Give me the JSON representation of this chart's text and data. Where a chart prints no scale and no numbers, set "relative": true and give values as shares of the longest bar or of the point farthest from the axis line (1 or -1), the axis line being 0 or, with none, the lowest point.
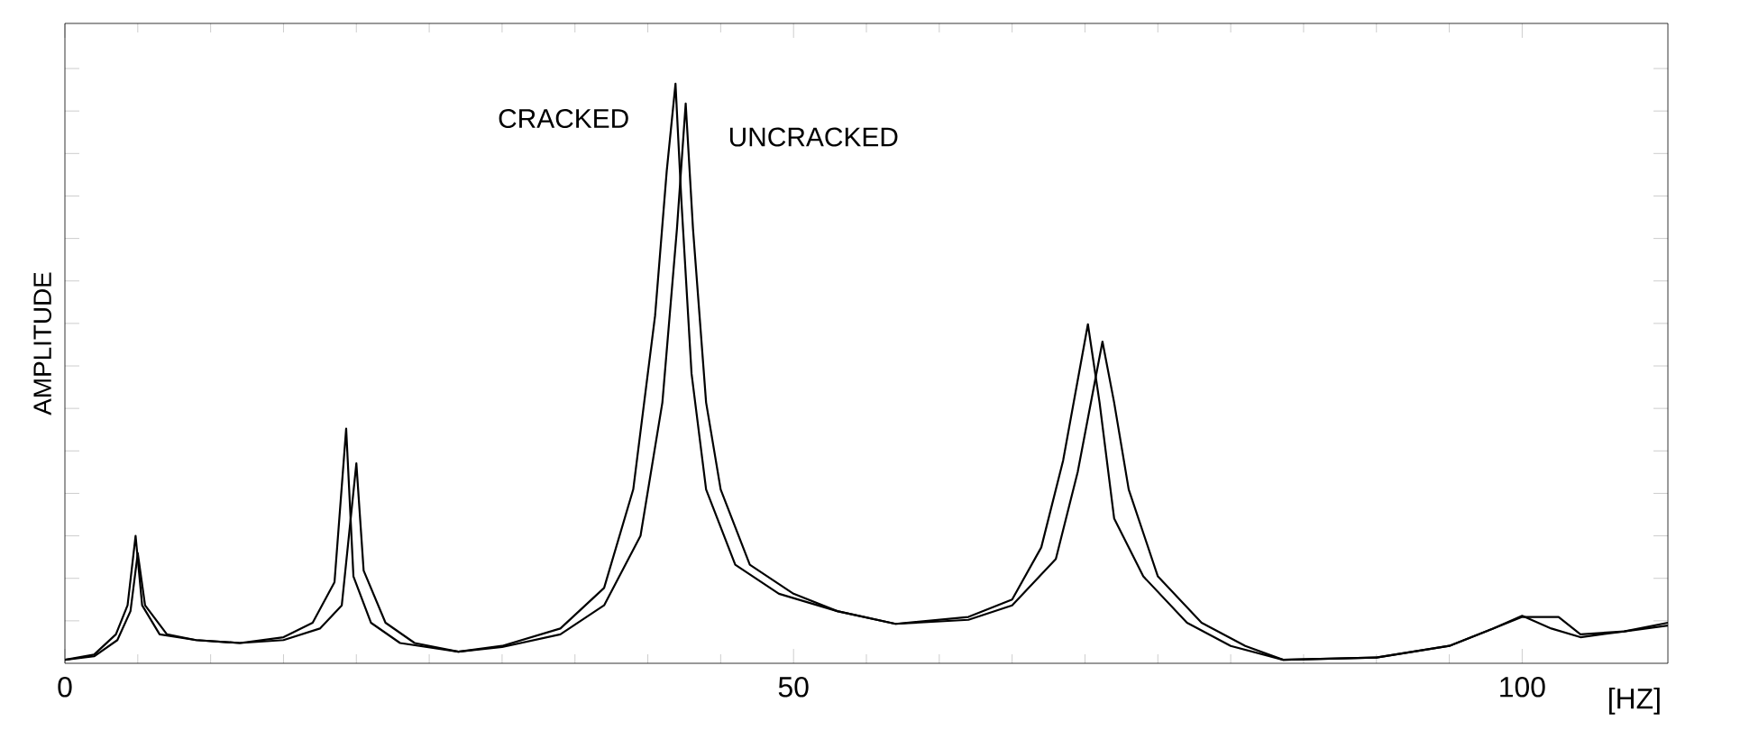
{
  "chart_data": {
    "type": "line",
    "xlabel": "[HZ]",
    "ylabel": "AMPLITUDE",
    "relative": true,
    "legend": false,
    "marker": "none",
    "line_style": "solid",
    "xlim": [
      0,
      110
    ],
    "xticks": [
      0,
      50,
      100
    ],
    "series": [
      {
        "name": "CRACKED",
        "color": "#000000",
        "x": [
          0,
          2,
          3.5,
          4.3,
          4.85,
          5.3,
          6.5,
          9,
          12,
          15,
          17,
          18.5,
          19.3,
          19.8,
          21,
          23,
          27,
          30,
          34,
          37,
          39,
          40.5,
          41.3,
          41.9,
          42.3,
          43,
          44,
          46,
          49,
          53,
          57,
          62,
          65,
          67,
          68.5,
          70.2,
          71,
          72,
          74,
          77,
          80,
          83.6,
          90,
          95,
          98,
          100,
          102,
          104,
          107,
          110
        ],
        "values": [
          0.006,
          0.015,
          0.05,
          0.1,
          0.22,
          0.1,
          0.05,
          0.04,
          0.035,
          0.045,
          0.07,
          0.14,
          0.405,
          0.15,
          0.07,
          0.035,
          0.02,
          0.03,
          0.06,
          0.13,
          0.3,
          0.6,
          0.85,
          1.0,
          0.8,
          0.5,
          0.3,
          0.17,
          0.12,
          0.09,
          0.068,
          0.08,
          0.11,
          0.2,
          0.35,
          0.585,
          0.45,
          0.25,
          0.15,
          0.07,
          0.03,
          0.006,
          0.01,
          0.03,
          0.06,
          0.082,
          0.06,
          0.045,
          0.055,
          0.07
        ]
      },
      {
        "name": "UNCRACKED",
        "color": "#000000",
        "x": [
          0,
          2,
          3.6,
          4.5,
          5.0,
          5.5,
          7,
          9,
          12,
          15,
          17.5,
          19,
          20.0,
          20.5,
          22,
          24,
          27,
          30,
          34,
          37,
          39.5,
          41,
          42,
          42.6,
          43.1,
          44,
          45,
          47,
          50,
          53,
          57,
          62,
          65,
          68,
          69.5,
          71.2,
          72,
          73,
          75,
          78,
          81,
          83.6,
          90,
          95,
          98,
          100,
          102.5,
          104,
          107,
          110
        ],
        "values": [
          0.006,
          0.012,
          0.04,
          0.09,
          0.19,
          0.1,
          0.05,
          0.04,
          0.035,
          0.04,
          0.06,
          0.1,
          0.345,
          0.16,
          0.07,
          0.035,
          0.02,
          0.028,
          0.05,
          0.1,
          0.22,
          0.45,
          0.75,
          0.966,
          0.75,
          0.45,
          0.3,
          0.17,
          0.12,
          0.09,
          0.068,
          0.075,
          0.1,
          0.18,
          0.33,
          0.555,
          0.45,
          0.3,
          0.15,
          0.07,
          0.03,
          0.006,
          0.01,
          0.03,
          0.06,
          0.08,
          0.08,
          0.05,
          0.055,
          0.065
        ]
      }
    ]
  }
}
